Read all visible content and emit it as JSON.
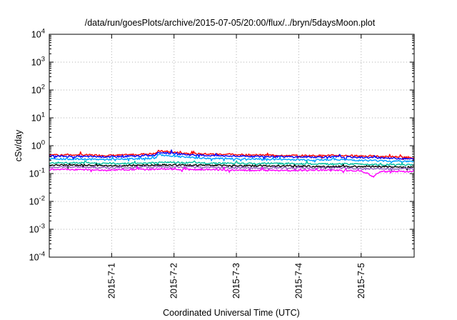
{
  "chart_data": {
    "type": "line",
    "title": "/data/run/goesPlots/archive/2015-07-05/20:00/flux/../bryn/5daysMoon.plot",
    "xlabel": "Coordinated Universal Time (UTC)",
    "ylabel": "cSv/day",
    "yscale": "log",
    "ylim": [
      0.0001,
      10000
    ],
    "xlim": [
      0.0,
      5.85
    ],
    "grid": true,
    "y_ticks": [
      {
        "base": "10",
        "exp": "4",
        "value": 10000
      },
      {
        "base": "10",
        "exp": "3",
        "value": 1000
      },
      {
        "base": "10",
        "exp": "2",
        "value": 100
      },
      {
        "base": "10",
        "exp": "1",
        "value": 10
      },
      {
        "base": "10",
        "exp": "0",
        "value": 1
      },
      {
        "base": "10",
        "exp": "-1",
        "value": 0.1
      },
      {
        "base": "10",
        "exp": "-2",
        "value": 0.01
      },
      {
        "base": "10",
        "exp": "-3",
        "value": 0.001
      },
      {
        "base": "10",
        "exp": "-4",
        "value": 0.0001
      }
    ],
    "x_ticks": [
      {
        "label": "2015-7-1",
        "value": 1.0
      },
      {
        "label": "2015-7-2",
        "value": 2.0
      },
      {
        "label": "2015-7-3",
        "value": 3.0
      },
      {
        "label": "2015-7-4",
        "value": 4.0
      },
      {
        "label": "2015-7-5",
        "value": 5.0
      }
    ],
    "series": [
      {
        "color": "#ff0000",
        "x": [
          0.0,
          0.5,
          0.9,
          1.2,
          1.5,
          1.7,
          1.75,
          2.0,
          2.3,
          2.6,
          3.0,
          3.4,
          3.8,
          4.2,
          4.6,
          5.0,
          5.3,
          5.6,
          5.85
        ],
        "values": [
          0.48,
          0.47,
          0.45,
          0.46,
          0.5,
          0.52,
          0.65,
          0.58,
          0.52,
          0.5,
          0.48,
          0.46,
          0.45,
          0.44,
          0.45,
          0.43,
          0.42,
          0.4,
          0.38
        ]
      },
      {
        "color": "#0000ff",
        "x": [
          0.0,
          0.5,
          0.9,
          1.2,
          1.5,
          1.7,
          1.75,
          2.0,
          2.3,
          2.6,
          3.0,
          3.4,
          3.8,
          4.2,
          4.6,
          5.0,
          5.3,
          5.6,
          5.85
        ],
        "values": [
          0.42,
          0.41,
          0.4,
          0.41,
          0.43,
          0.45,
          0.58,
          0.52,
          0.46,
          0.44,
          0.42,
          0.41,
          0.4,
          0.39,
          0.4,
          0.38,
          0.37,
          0.35,
          0.33
        ]
      },
      {
        "color": "#00a0ff",
        "x": [
          0.0,
          0.5,
          0.9,
          1.2,
          1.5,
          1.7,
          1.75,
          2.0,
          2.3,
          2.6,
          3.0,
          3.4,
          3.8,
          4.2,
          4.6,
          5.0,
          5.3,
          5.6,
          5.85
        ],
        "values": [
          0.34,
          0.33,
          0.32,
          0.33,
          0.35,
          0.36,
          0.48,
          0.42,
          0.37,
          0.35,
          0.34,
          0.33,
          0.32,
          0.31,
          0.32,
          0.3,
          0.29,
          0.28,
          0.27
        ]
      },
      {
        "color": "#00c0a0",
        "x": [
          0.0,
          0.5,
          0.9,
          1.2,
          1.5,
          1.7,
          1.75,
          2.0,
          2.3,
          2.6,
          3.0,
          3.4,
          3.8,
          4.2,
          4.6,
          5.0,
          5.3,
          5.6,
          5.85
        ],
        "values": [
          0.24,
          0.24,
          0.23,
          0.23,
          0.24,
          0.24,
          0.26,
          0.25,
          0.24,
          0.24,
          0.23,
          0.23,
          0.23,
          0.22,
          0.22,
          0.22,
          0.21,
          0.21,
          0.2
        ]
      },
      {
        "color": "#000000",
        "x": [
          0.0,
          0.5,
          0.9,
          1.2,
          1.5,
          1.7,
          1.75,
          2.0,
          2.3,
          2.6,
          3.0,
          3.4,
          3.8,
          4.2,
          4.6,
          5.0,
          5.3,
          5.6,
          5.85
        ],
        "values": [
          0.2,
          0.2,
          0.19,
          0.19,
          0.2,
          0.2,
          0.21,
          0.2,
          0.2,
          0.2,
          0.19,
          0.19,
          0.19,
          0.18,
          0.18,
          0.18,
          0.18,
          0.17,
          0.17
        ]
      },
      {
        "color": "#9060c0",
        "x": [
          0.0,
          0.5,
          0.9,
          1.2,
          1.5,
          1.7,
          1.75,
          2.0,
          2.3,
          2.6,
          3.0,
          3.4,
          3.8,
          4.2,
          4.6,
          5.0,
          5.3,
          5.6,
          5.85
        ],
        "values": [
          0.17,
          0.17,
          0.16,
          0.16,
          0.17,
          0.17,
          0.18,
          0.17,
          0.17,
          0.17,
          0.16,
          0.16,
          0.16,
          0.16,
          0.16,
          0.15,
          0.15,
          0.15,
          0.15
        ]
      },
      {
        "color": "#ff00ff",
        "x": [
          0.0,
          0.5,
          0.9,
          1.2,
          1.5,
          1.7,
          1.75,
          2.0,
          2.3,
          2.6,
          3.0,
          3.4,
          3.8,
          4.2,
          4.6,
          5.0,
          5.2,
          5.3,
          5.6,
          5.85
        ],
        "values": [
          0.14,
          0.14,
          0.13,
          0.14,
          0.14,
          0.14,
          0.15,
          0.14,
          0.14,
          0.14,
          0.13,
          0.13,
          0.13,
          0.13,
          0.13,
          0.13,
          0.075,
          0.12,
          0.12,
          0.12
        ]
      }
    ]
  }
}
